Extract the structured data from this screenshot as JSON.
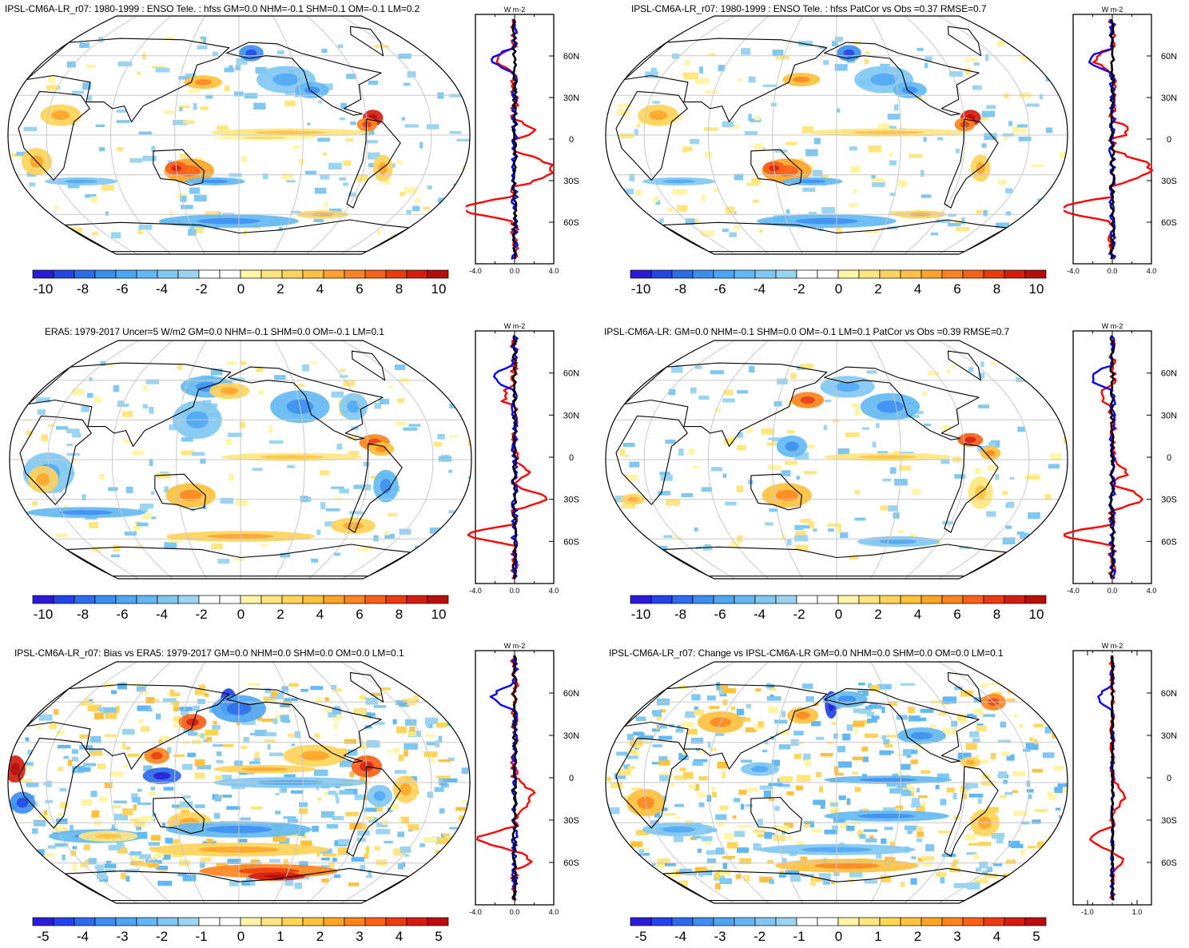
{
  "panels": [
    {
      "title": "IPSL-CM6A-LR_r07: 1980-1999 : ENSO Tele. : hfss GM=0.0 NHM=-0.1 SHM=0.1 OM=-0.1 LM=0.2",
      "colorbar_labels": [
        "-10",
        "-8",
        "-6",
        "-4",
        "-2",
        "0",
        "2",
        "4",
        "6",
        "8",
        "10"
      ],
      "zonal_unit": "W m-2",
      "zonal_lat_labels": [
        "60N",
        "30N",
        "0",
        "30S",
        "60S"
      ],
      "zonal_x_labels": [
        "-4.0",
        "0.0",
        "4.0"
      ]
    },
    {
      "title": "IPSL-CM6A-LR_r07: 1980-1999 : ENSO Tele. : hfss PatCor vs Obs =0.37 RMSE=0.7",
      "colorbar_labels": [
        "-10",
        "-8",
        "-6",
        "-4",
        "-2",
        "0",
        "2",
        "4",
        "6",
        "8",
        "10"
      ],
      "zonal_unit": "W m-2",
      "zonal_lat_labels": [
        "60N",
        "30N",
        "0",
        "30S",
        "60S"
      ],
      "zonal_x_labels": [
        "-4.0",
        "0.0",
        "4.0"
      ]
    },
    {
      "title": "ERA5: 1979-2017 Uncer=5 W/m2 GM=0.0 NHM=-0.1 SHM=0.0 OM=-0.1 LM=0.1",
      "colorbar_labels": [
        "-10",
        "-8",
        "-6",
        "-4",
        "-2",
        "0",
        "2",
        "4",
        "6",
        "8",
        "10"
      ],
      "zonal_unit": "W m-2",
      "zonal_lat_labels": [
        "60N",
        "30N",
        "0",
        "30S",
        "60S"
      ],
      "zonal_x_labels": [
        "-4.0",
        "0.0",
        "4.0"
      ]
    },
    {
      "title": "IPSL-CM6A-LR: GM=0.0 NHM=-0.1 SHM=0.0 OM=-0.1 LM=0.1 PatCor vs Obs =0.39 RMSE=0.7",
      "colorbar_labels": [
        "-10",
        "-8",
        "-6",
        "-4",
        "-2",
        "0",
        "2",
        "4",
        "6",
        "8",
        "10"
      ],
      "zonal_unit": "W m-2",
      "zonal_lat_labels": [
        "60N",
        "30N",
        "0",
        "30S",
        "60S"
      ],
      "zonal_x_labels": [
        "-4.0",
        "0.0",
        "4.0"
      ]
    },
    {
      "title": "IPSL-CM6A-LR_r07: Bias vs ERA5: 1979-2017 GM=0.0 NHM=0.0 SHM=0.0 OM=0.0 LM=0.1",
      "colorbar_labels": [
        "-5",
        "-4",
        "-3",
        "-2",
        "-1",
        "0",
        "1",
        "2",
        "3",
        "4",
        "5"
      ],
      "zonal_unit": "W m-2",
      "zonal_lat_labels": [
        "60N",
        "30N",
        "0",
        "30S",
        "60S"
      ],
      "zonal_x_labels": [
        "-4.0",
        "0.0",
        "4.0"
      ]
    },
    {
      "title": "IPSL-CM6A-LR_r07: Change vs IPSL-CM6A-LR GM=0.0 NHM=0.0 SHM=0.0 OM=0.0 LM=0.1",
      "colorbar_labels": [
        "-5",
        "-4",
        "-3",
        "-2",
        "-1",
        "0",
        "1",
        "2",
        "3",
        "4",
        "5"
      ],
      "zonal_unit": "W m-2",
      "zonal_lat_labels": [
        "60N",
        "30N",
        "0",
        "30S",
        "60S"
      ],
      "zonal_x_labels": [
        "-1.0",
        "1.0"
      ]
    }
  ],
  "colors": {
    "palette": [
      "#2a1bd8",
      "#2443e6",
      "#2d6bea",
      "#3c8ef0",
      "#4ea6f2",
      "#63b8f3",
      "#80c8f2",
      "#9bd4f0",
      "#ffffff",
      "#ffffff",
      "#fff5a8",
      "#ffe680",
      "#ffd45a",
      "#ffc13e",
      "#ffa329",
      "#ff8420",
      "#f96018",
      "#eb3a12",
      "#d41d10",
      "#b80d0d"
    ],
    "model_line": "#ff0000",
    "obs_line": "#0000ff",
    "mean_line": "#000000"
  }
}
